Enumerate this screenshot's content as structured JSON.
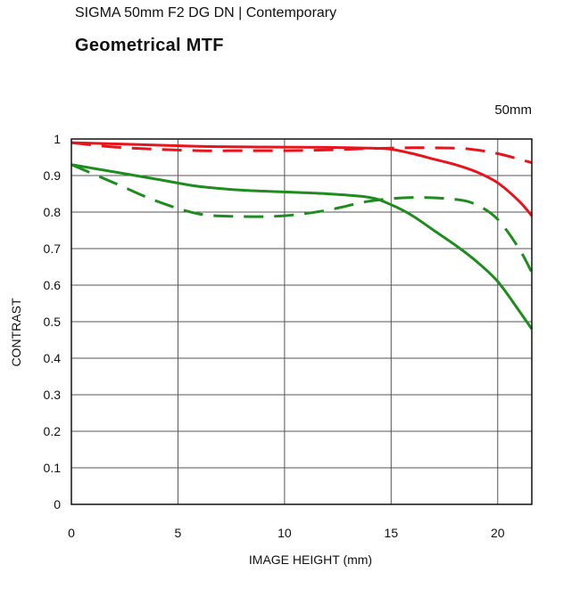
{
  "header": {
    "subtitle": "SIGMA 50mm F2 DG DN | Contemporary",
    "title": "Geometrical MTF",
    "focal_label": "50mm"
  },
  "chart_data": {
    "type": "line",
    "title": "Geometrical MTF",
    "xlabel": "IMAGE HEIGHT (mm)",
    "ylabel": "CONTRAST",
    "xlim": [
      0,
      21.6
    ],
    "ylim": [
      0,
      1
    ],
    "x_ticks": [
      "0",
      "5",
      "10",
      "15",
      "20"
    ],
    "y_ticks": [
      "0",
      "0.1",
      "0.2",
      "0.3",
      "0.4",
      "0.5",
      "0.6",
      "0.7",
      "0.8",
      "0.9",
      "1"
    ],
    "grid": true,
    "series": [
      {
        "color": "#e8141b",
        "dash": "solid",
        "x": [
          0,
          3,
          6,
          9,
          12,
          14,
          15,
          16,
          17,
          18,
          19,
          20,
          21,
          21.6
        ],
        "y": [
          0.99,
          0.985,
          0.98,
          0.978,
          0.977,
          0.975,
          0.972,
          0.96,
          0.945,
          0.93,
          0.91,
          0.88,
          0.83,
          0.79
        ]
      },
      {
        "color": "#e8141b",
        "dash": "dashed",
        "x": [
          0,
          2,
          4,
          6,
          8,
          10,
          12,
          14,
          16,
          18,
          19,
          20,
          21,
          21.6
        ],
        "y": [
          0.99,
          0.978,
          0.972,
          0.968,
          0.968,
          0.968,
          0.97,
          0.974,
          0.976,
          0.975,
          0.97,
          0.96,
          0.945,
          0.935
        ]
      },
      {
        "color": "#1e8c1e",
        "dash": "solid",
        "x": [
          0,
          2,
          4,
          6,
          8,
          10,
          12,
          14,
          15,
          16,
          17,
          18,
          19,
          20,
          21,
          21.6
        ],
        "y": [
          0.93,
          0.91,
          0.89,
          0.87,
          0.86,
          0.855,
          0.85,
          0.84,
          0.82,
          0.79,
          0.75,
          0.71,
          0.665,
          0.61,
          0.53,
          0.48
        ]
      },
      {
        "color": "#1e8c1e",
        "dash": "dashed",
        "x": [
          0,
          2,
          4,
          6,
          8,
          10,
          12,
          14,
          16,
          18,
          19,
          20,
          21,
          21.6
        ],
        "y": [
          0.93,
          0.88,
          0.83,
          0.795,
          0.788,
          0.79,
          0.805,
          0.83,
          0.84,
          0.835,
          0.82,
          0.78,
          0.7,
          0.635
        ]
      }
    ]
  }
}
